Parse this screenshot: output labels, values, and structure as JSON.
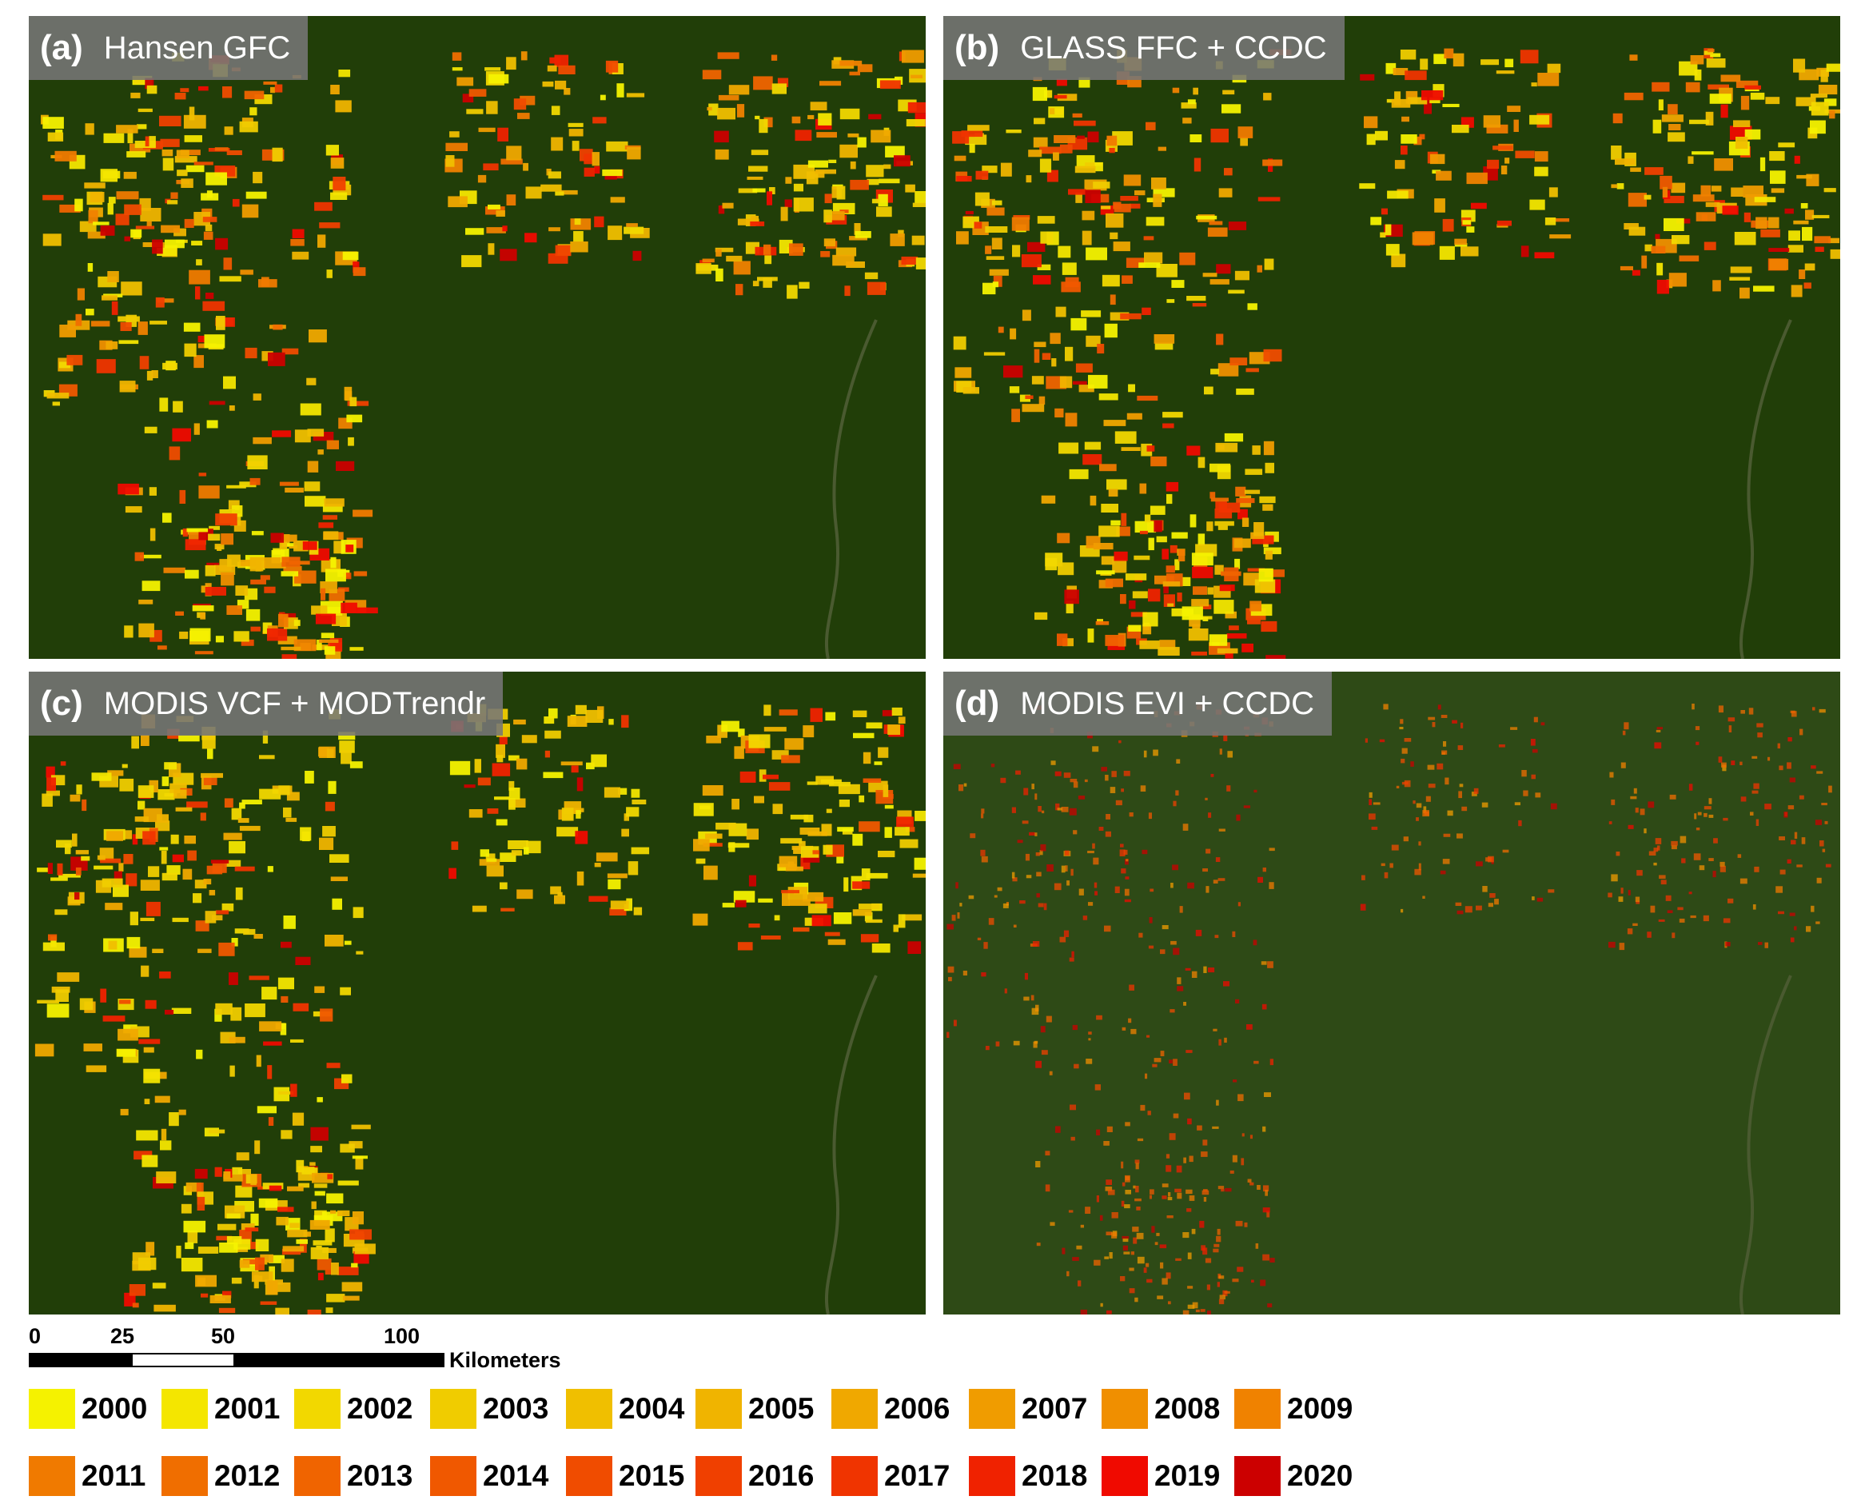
{
  "panels": [
    {
      "letter": "(a)",
      "name": "Hansen GFC",
      "style": "sharp"
    },
    {
      "letter": "(b)",
      "name": "GLASS FFC + CCDC",
      "style": "sharp"
    },
    {
      "letter": "(c)",
      "name": "MODIS VCF + MODTrendr",
      "style": "yellow"
    },
    {
      "letter": "(d)",
      "name": "MODIS EVI + CCDC",
      "style": "blurry"
    }
  ],
  "scalebar": {
    "ticks": [
      "0",
      "25",
      "50",
      "100"
    ],
    "units": "Kilometers"
  },
  "legend": {
    "row1": [
      {
        "year": "2000",
        "color": "#f5f200"
      },
      {
        "year": "2001",
        "color": "#f4e600"
      },
      {
        "year": "2002",
        "color": "#f2d800"
      },
      {
        "year": "2003",
        "color": "#f0cc00"
      },
      {
        "year": "2004",
        "color": "#f0bf00"
      },
      {
        "year": "2005",
        "color": "#f0b400"
      },
      {
        "year": "2006",
        "color": "#f0a800"
      },
      {
        "year": "2007",
        "color": "#f09c00"
      },
      {
        "year": "2008",
        "color": "#f08f00"
      },
      {
        "year": "2009",
        "color": "#f08200"
      }
    ],
    "row2": [
      {
        "year": "2011",
        "color": "#f07a00"
      },
      {
        "year": "2012",
        "color": "#f06e00"
      },
      {
        "year": "2013",
        "color": "#f06400"
      },
      {
        "year": "2014",
        "color": "#f05800"
      },
      {
        "year": "2015",
        "color": "#f04c00"
      },
      {
        "year": "2016",
        "color": "#f04000"
      },
      {
        "year": "2017",
        "color": "#f03400"
      },
      {
        "year": "2018",
        "color": "#f02200"
      },
      {
        "year": "2019",
        "color": "#f00a00"
      },
      {
        "year": "2020",
        "color": "#cc0000"
      }
    ]
  },
  "colors": {
    "forest": "#213e08",
    "label_bg": "#767676"
  }
}
